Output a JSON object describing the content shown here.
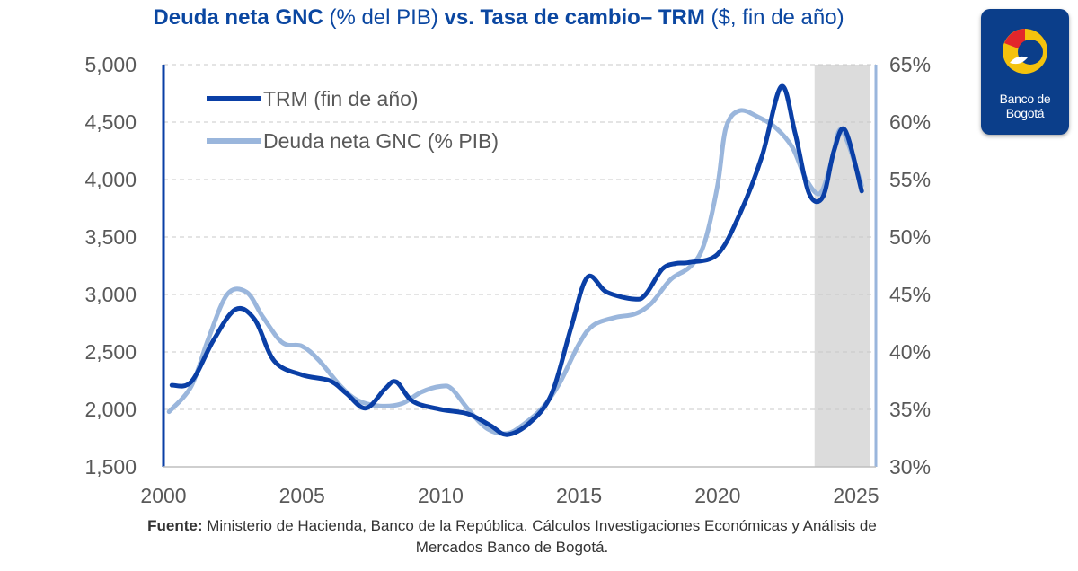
{
  "title": {
    "part1_bold": "Deuda neta GNC",
    "part2": " (% del PIB) ",
    "part3_bold": "vs. Tasa de cambio– TRM",
    "part4": " ($, fin de año)"
  },
  "logo": {
    "line1": "Banco de",
    "line2": "Bogotá"
  },
  "source": {
    "label": "Fuente:",
    "text": " Ministerio de Hacienda, Banco de la República. Cálculos Investigaciones Económicas y Análisis de",
    "line2": "Mercados Banco de Bogotá."
  },
  "chart_data": {
    "type": "line",
    "x_ticks": [
      "2000",
      "2005",
      "2010",
      "2015",
      "2020",
      "2025"
    ],
    "xlim": [
      2000,
      2025
    ],
    "y_left": {
      "ticks": [
        "1,500",
        "2,000",
        "2,500",
        "3,000",
        "3,500",
        "4,000",
        "4,500",
        "5,000"
      ],
      "lim": [
        1500,
        5000
      ]
    },
    "y_right": {
      "ticks": [
        "30%",
        "35%",
        "40%",
        "45%",
        "50%",
        "55%",
        "60%",
        "65%"
      ],
      "lim": [
        30,
        65
      ]
    },
    "grid": true,
    "legend_position": "top-left",
    "shaded_region": {
      "x_start": 2023.5,
      "x_end": 2025.5
    },
    "series": [
      {
        "name": "TRM (fin de año)",
        "axis": "left",
        "color": "#0a3fa6",
        "points": [
          [
            2000.3,
            2210
          ],
          [
            2001,
            2240
          ],
          [
            2001.8,
            2600
          ],
          [
            2002.6,
            2870
          ],
          [
            2003.3,
            2780
          ],
          [
            2004,
            2420
          ],
          [
            2005,
            2300
          ],
          [
            2006,
            2250
          ],
          [
            2006.6,
            2140
          ],
          [
            2007.3,
            2010
          ],
          [
            2008,
            2180
          ],
          [
            2008.4,
            2240
          ],
          [
            2009,
            2070
          ],
          [
            2010,
            2000
          ],
          [
            2011,
            1960
          ],
          [
            2011.8,
            1860
          ],
          [
            2012.4,
            1780
          ],
          [
            2013.2,
            1880
          ],
          [
            2014,
            2130
          ],
          [
            2014.7,
            2700
          ],
          [
            2015.3,
            3150
          ],
          [
            2016,
            3020
          ],
          [
            2017,
            2960
          ],
          [
            2017.4,
            3000
          ],
          [
            2018,
            3220
          ],
          [
            2018.5,
            3270
          ],
          [
            2019,
            3280
          ],
          [
            2020,
            3350
          ],
          [
            2020.8,
            3700
          ],
          [
            2021.6,
            4200
          ],
          [
            2022.3,
            4810
          ],
          [
            2022.8,
            4400
          ],
          [
            2023.3,
            3880
          ],
          [
            2023.8,
            3850
          ],
          [
            2024.2,
            4250
          ],
          [
            2024.6,
            4430
          ],
          [
            2025.2,
            3900
          ]
        ]
      },
      {
        "name": "Deuda neta GNC (% PIB)",
        "axis": "right",
        "color": "#9ab6dc",
        "points": [
          [
            2000.2,
            34.8
          ],
          [
            2001,
            37
          ],
          [
            2001.6,
            41
          ],
          [
            2002.3,
            45
          ],
          [
            2003,
            45.2
          ],
          [
            2003.6,
            43
          ],
          [
            2004.3,
            40.8
          ],
          [
            2005,
            40.5
          ],
          [
            2005.6,
            39.3
          ],
          [
            2006.4,
            37
          ],
          [
            2007,
            35.8
          ],
          [
            2007.8,
            35.3
          ],
          [
            2008.6,
            35.5
          ],
          [
            2009.3,
            36.5
          ],
          [
            2010,
            37
          ],
          [
            2010.4,
            36.8
          ],
          [
            2011,
            35
          ],
          [
            2011.7,
            33.3
          ],
          [
            2012.4,
            32.9
          ],
          [
            2013,
            33.7
          ],
          [
            2013.7,
            35.2
          ],
          [
            2014.3,
            37.3
          ],
          [
            2015,
            40.7
          ],
          [
            2015.5,
            42.3
          ],
          [
            2016.3,
            43
          ],
          [
            2017,
            43.3
          ],
          [
            2017.6,
            44.2
          ],
          [
            2018.3,
            46.3
          ],
          [
            2019,
            47.4
          ],
          [
            2019.5,
            49.3
          ],
          [
            2020,
            54.5
          ],
          [
            2020.3,
            59.5
          ],
          [
            2020.8,
            61
          ],
          [
            2021.5,
            60.4
          ],
          [
            2022.1,
            59.5
          ],
          [
            2022.7,
            57.8
          ],
          [
            2023.2,
            55
          ],
          [
            2023.7,
            53.8
          ],
          [
            2024.1,
            56.5
          ],
          [
            2024.4,
            59.3
          ],
          [
            2024.7,
            58.2
          ],
          [
            2025.2,
            54.5
          ]
        ]
      }
    ]
  }
}
